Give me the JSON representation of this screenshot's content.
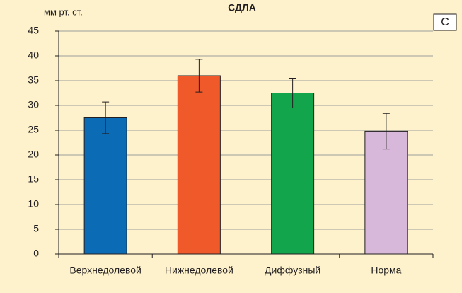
{
  "chart_data": {
    "type": "bar",
    "title": "СДЛА",
    "y_label": "мм рт. ст.",
    "panel_label": "С",
    "categories": [
      "Верхнедолевой",
      "Нижнедолевой",
      "Диффузный",
      "Норма"
    ],
    "values": [
      27.5,
      36,
      32.5,
      24.8
    ],
    "errors": [
      3.2,
      3.3,
      3,
      3.6
    ],
    "colors": [
      "#0b6cb5",
      "#f05a2b",
      "#12a54c",
      "#d7b8da"
    ],
    "ylim": [
      0,
      45
    ],
    "yticks": [
      0,
      5,
      10,
      15,
      20,
      25,
      30,
      35,
      40,
      45
    ],
    "grid": true
  }
}
